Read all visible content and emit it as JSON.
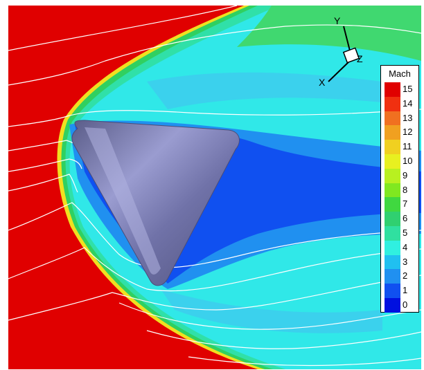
{
  "axes": {
    "x": "X",
    "y": "Y",
    "z": "Z"
  },
  "legend": {
    "title": "Mach",
    "levels": [
      {
        "label": "15",
        "color": "#e00000"
      },
      {
        "label": "14",
        "color": "#f03010"
      },
      {
        "label": "13",
        "color": "#f07020"
      },
      {
        "label": "12",
        "color": "#f0a020"
      },
      {
        "label": "11",
        "color": "#f0d020"
      },
      {
        "label": "10",
        "color": "#e8f020"
      },
      {
        "label": "9",
        "color": "#b8f020"
      },
      {
        "label": "8",
        "color": "#80e820"
      },
      {
        "label": "7",
        "color": "#40d840"
      },
      {
        "label": "6",
        "color": "#30d070"
      },
      {
        "label": "5",
        "color": "#30e0a0"
      },
      {
        "label": "4",
        "color": "#30f0e0"
      },
      {
        "label": "3",
        "color": "#20c0f0"
      },
      {
        "label": "2",
        "color": "#2090f0"
      },
      {
        "label": "1",
        "color": "#1050f0"
      },
      {
        "label": "0",
        "color": "#0010e0"
      }
    ]
  },
  "colors": {
    "freestream": "#e00000",
    "shock_layer": "#30e8e8",
    "wake": "#1a6cf0",
    "body": "#7c7eb0",
    "streamline": "#ffffff"
  }
}
